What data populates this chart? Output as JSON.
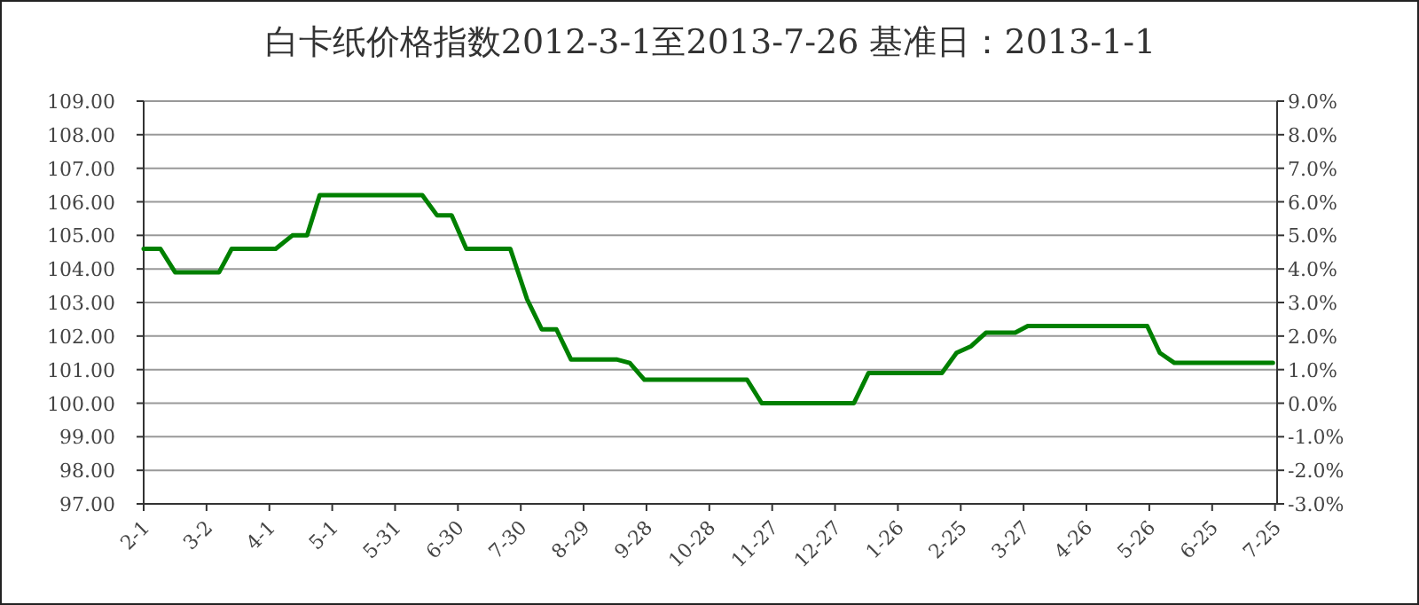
{
  "chart_data": {
    "type": "line",
    "title": "白卡纸价格指数2012-3-1至2013-7-26 基准日：2013-1-1",
    "x": [
      "2012-02-01",
      "2012-02-09",
      "2012-02-16",
      "2012-03-08",
      "2012-03-14",
      "2012-04-04",
      "2012-04-12",
      "2012-04-19",
      "2012-04-25",
      "2012-06-13",
      "2012-06-20",
      "2012-06-27",
      "2012-07-04",
      "2012-07-25",
      "2012-08-02",
      "2012-08-09",
      "2012-08-16",
      "2012-08-23",
      "2012-09-14",
      "2012-09-20",
      "2012-09-27",
      "2012-11-15",
      "2012-11-22",
      "2013-01-05",
      "2013-01-12",
      "2013-02-16",
      "2013-02-23",
      "2013-03-02",
      "2013-03-09",
      "2013-03-23",
      "2013-03-29",
      "2013-05-25",
      "2013-05-31",
      "2013-06-07",
      "2013-07-24"
    ],
    "values": [
      104.6,
      104.6,
      103.9,
      103.9,
      104.6,
      104.6,
      105.0,
      105.0,
      106.2,
      106.2,
      105.6,
      105.6,
      104.6,
      104.6,
      103.1,
      102.2,
      102.2,
      101.3,
      101.3,
      101.2,
      100.7,
      100.7,
      100.0,
      100.0,
      100.9,
      100.9,
      101.5,
      101.7,
      102.1,
      102.1,
      102.3,
      102.3,
      101.5,
      101.2,
      101.2
    ],
    "color": "#008000",
    "xlim": [
      "2012-02-01",
      "2013-07-26"
    ],
    "xticks": [
      {
        "value": "2012-02-01",
        "label": "2-1"
      },
      {
        "value": "2012-03-02",
        "label": "3-2"
      },
      {
        "value": "2012-04-01",
        "label": "4-1"
      },
      {
        "value": "2012-05-01",
        "label": "5-1"
      },
      {
        "value": "2012-05-31",
        "label": "5-31"
      },
      {
        "value": "2012-06-30",
        "label": "6-30"
      },
      {
        "value": "2012-07-30",
        "label": "7-30"
      },
      {
        "value": "2012-08-29",
        "label": "8-29"
      },
      {
        "value": "2012-09-28",
        "label": "9-28"
      },
      {
        "value": "2012-10-28",
        "label": "10-28"
      },
      {
        "value": "2012-11-27",
        "label": "11-27"
      },
      {
        "value": "2012-12-27",
        "label": "12-27"
      },
      {
        "value": "2013-01-26",
        "label": "1-26"
      },
      {
        "value": "2013-02-25",
        "label": "2-25"
      },
      {
        "value": "2013-03-27",
        "label": "3-27"
      },
      {
        "value": "2013-04-26",
        "label": "4-26"
      },
      {
        "value": "2013-05-26",
        "label": "5-26"
      },
      {
        "value": "2013-06-25",
        "label": "6-25"
      },
      {
        "value": "2013-07-25",
        "label": "7-25"
      }
    ],
    "ylim": [
      97,
      109
    ],
    "yticks": [
      {
        "value": 97,
        "label": "97.00"
      },
      {
        "value": 98,
        "label": "98.00"
      },
      {
        "value": 99,
        "label": "99.00"
      },
      {
        "value": 100,
        "label": "100.00"
      },
      {
        "value": 101,
        "label": "101.00"
      },
      {
        "value": 102,
        "label": "102.00"
      },
      {
        "value": 103,
        "label": "103.00"
      },
      {
        "value": 104,
        "label": "104.00"
      },
      {
        "value": 105,
        "label": "105.00"
      },
      {
        "value": 106,
        "label": "106.00"
      },
      {
        "value": 107,
        "label": "107.00"
      },
      {
        "value": 108,
        "label": "108.00"
      },
      {
        "value": 109,
        "label": "109.00"
      }
    ],
    "y2lim": [
      -3,
      9
    ],
    "y2ticks": [
      {
        "value": -3,
        "label": "-3.0%"
      },
      {
        "value": -2,
        "label": "-2.0%"
      },
      {
        "value": -1,
        "label": "-1.0%"
      },
      {
        "value": 0,
        "label": "0.0%"
      },
      {
        "value": 1,
        "label": "1.0%"
      },
      {
        "value": 2,
        "label": "2.0%"
      },
      {
        "value": 3,
        "label": "3.0%"
      },
      {
        "value": 4,
        "label": "4.0%"
      },
      {
        "value": 5,
        "label": "5.0%"
      },
      {
        "value": 6,
        "label": "6.0%"
      },
      {
        "value": 7,
        "label": "7.0%"
      },
      {
        "value": 8,
        "label": "8.0%"
      },
      {
        "value": 9,
        "label": "9.0%"
      }
    ],
    "grid": "y",
    "line_style": "solid"
  }
}
